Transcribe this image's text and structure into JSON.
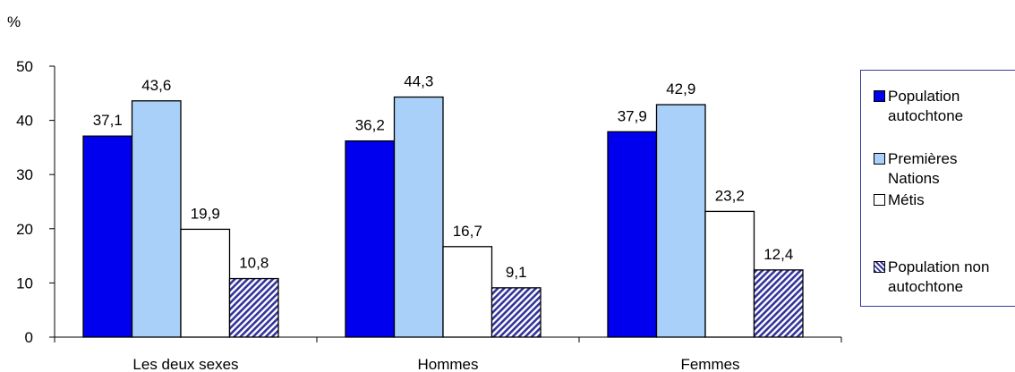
{
  "chart_data": {
    "type": "bar",
    "ylabel": "%",
    "ylim": [
      0,
      50
    ],
    "yticks": [
      "0",
      "10",
      "20",
      "30",
      "40",
      "50"
    ],
    "categories": [
      "Les deux sexes",
      "Hommes",
      "Femmes"
    ],
    "series": [
      {
        "name": "Population autochtone",
        "values": [
          37.1,
          36.2,
          37.9
        ],
        "labels": [
          "37,1",
          "36,2",
          "37,9"
        ],
        "color": "#0000ee",
        "pattern": "solid"
      },
      {
        "name": "Premières Nations",
        "values": [
          43.6,
          44.3,
          42.9
        ],
        "labels": [
          "43,6",
          "44,3",
          "42,9"
        ],
        "color": "#a8d0f8",
        "pattern": "solid"
      },
      {
        "name": "Métis",
        "values": [
          19.9,
          16.7,
          23.2
        ],
        "labels": [
          "19,9",
          "16,7",
          "23,2"
        ],
        "color": "#ffffff",
        "pattern": "solid"
      },
      {
        "name": "Population non autochtone",
        "values": [
          10.8,
          9.1,
          12.4
        ],
        "labels": [
          "10,8",
          "9,1",
          "12,4"
        ],
        "color": "#3333aa",
        "pattern": "hatch"
      }
    ],
    "legend_position": "right",
    "grid": false
  }
}
